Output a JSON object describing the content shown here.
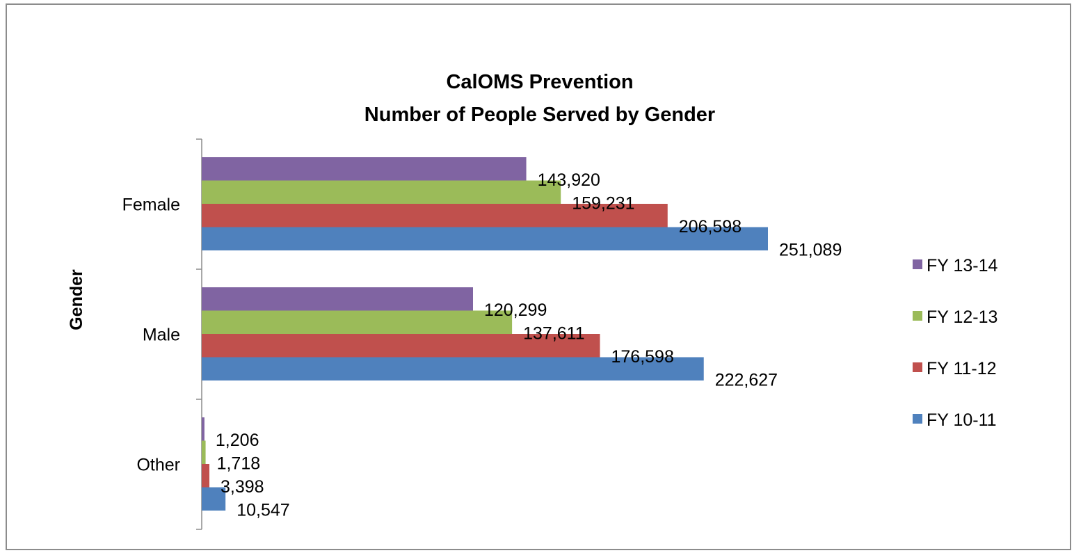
{
  "chart_data": {
    "type": "bar",
    "orientation": "horizontal",
    "title": [
      "CalOMS Prevention",
      "Number of People Served by Gender"
    ],
    "ylabel": "Gender",
    "xlabel": "",
    "categories": [
      "Female",
      "Male",
      "Other"
    ],
    "xlim": [
      0,
      251089
    ],
    "grid": false,
    "legend_position": "right",
    "series": [
      {
        "name": "FY 13-14",
        "color": "#8064A2",
        "values": [
          143920,
          120299,
          1206
        ],
        "labels": [
          "143,920",
          "120,299",
          "1,206"
        ]
      },
      {
        "name": "FY 12-13",
        "color": "#9BBB59",
        "values": [
          159231,
          137611,
          1718
        ],
        "labels": [
          "159,231",
          "137,611",
          "1,718"
        ]
      },
      {
        "name": "FY 11-12",
        "color": "#C0504D",
        "values": [
          206598,
          176598,
          3398
        ],
        "labels": [
          "206,598",
          "176,598",
          "3,398"
        ]
      },
      {
        "name": "FY 10-11",
        "color": "#4F81BD",
        "values": [
          251089,
          222627,
          10547
        ],
        "labels": [
          "251,089",
          "222,627",
          "10,547"
        ]
      }
    ]
  }
}
